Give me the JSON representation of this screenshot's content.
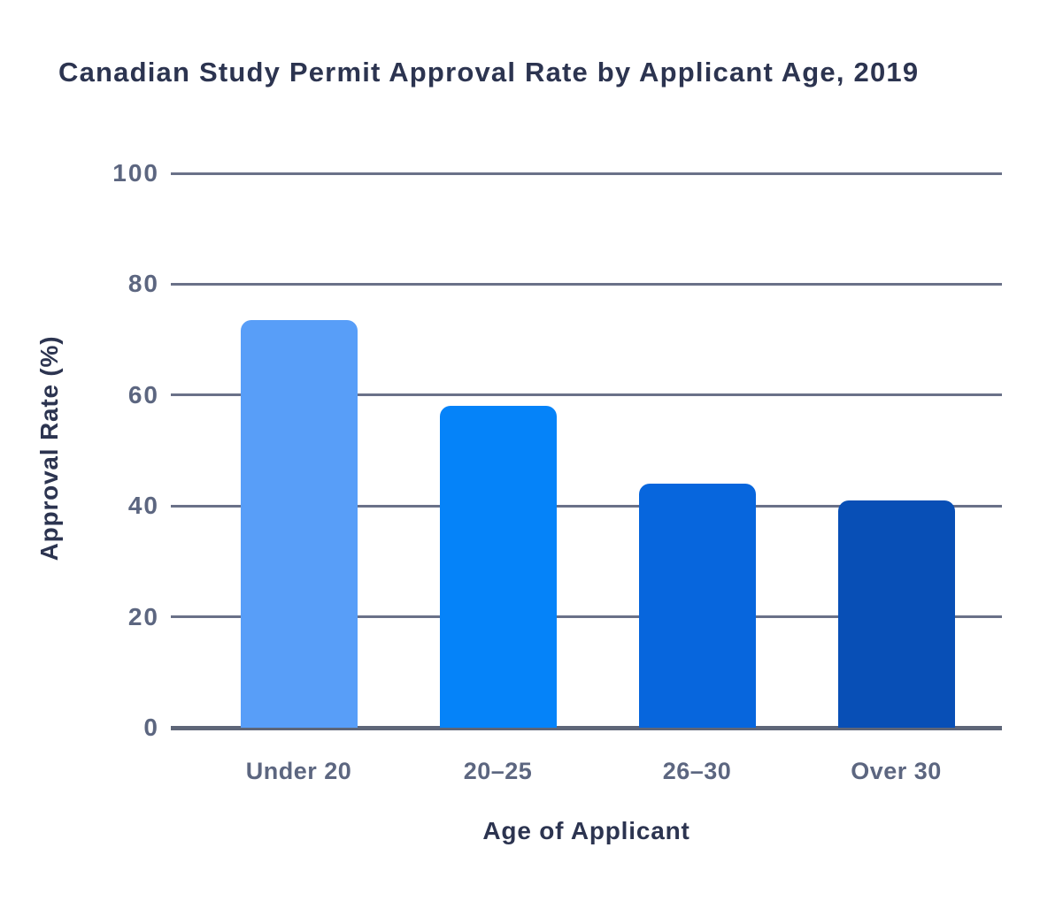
{
  "chart_data": {
    "type": "bar",
    "title": "Canadian Study Permit Approval Rate by Applicant Age, 2019",
    "xlabel": "Age of Applicant",
    "ylabel": "Approval Rate (%)",
    "categories": [
      "Under 20",
      "20–25",
      "26–30",
      "Over 30"
    ],
    "values": [
      73.5,
      58,
      44,
      41
    ],
    "bar_colors": [
      "#589EF8",
      "#0583F9",
      "#0766DD",
      "#084FB6"
    ],
    "ylim": [
      0,
      100
    ],
    "yticks": [
      0,
      20,
      40,
      60,
      80,
      100
    ],
    "grid": "horizontal-only",
    "legend": "none"
  },
  "theme": {
    "background": "#FFFFFF",
    "title_color": "#2C3450",
    "axis_title_color": "#2C3450",
    "tick_label_color": "#5C6680",
    "grid_color": "#6A7188",
    "axis_line_color": "#5E6678"
  }
}
